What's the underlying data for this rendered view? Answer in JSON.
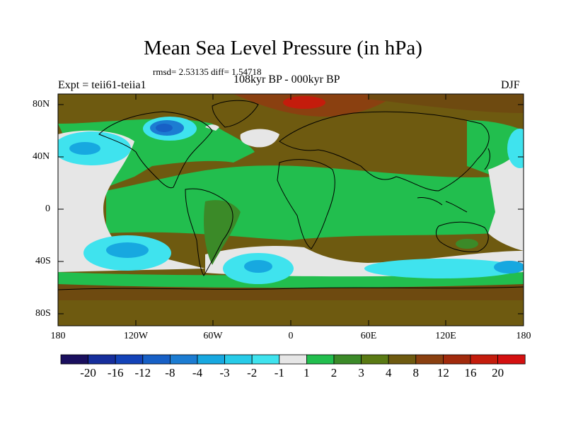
{
  "title": "Mean Sea Level Pressure (in hPa)",
  "stats": "rmsd= 2.53135 diff= 1.54718",
  "experiment": "Expt = teii61-teiia1",
  "period": "108kyr BP - 000kyr BP",
  "season": "DJF",
  "lat_labels": [
    "80N",
    "40N",
    "0",
    "40S",
    "80S"
  ],
  "lon_labels": [
    "180",
    "120W",
    "60W",
    "0",
    "60E",
    "120E",
    "180"
  ],
  "colorbar": {
    "labels": [
      "-20",
      "-16",
      "-12",
      "-8",
      "-4",
      "-3",
      "-2",
      "-1",
      "1",
      "2",
      "3",
      "4",
      "8",
      "12",
      "16",
      "20"
    ],
    "colors": [
      "#1a0f5e",
      "#162e9c",
      "#1343b8",
      "#1760c6",
      "#1c7cd2",
      "#17a8e0",
      "#27cbe8",
      "#3fe3ee",
      "#e6e6e6",
      "#22be4e",
      "#3b8a28",
      "#5a7a14",
      "#6e5a10",
      "#8a4010",
      "#a12a0c",
      "#c41c0c",
      "#d41010"
    ]
  }
}
